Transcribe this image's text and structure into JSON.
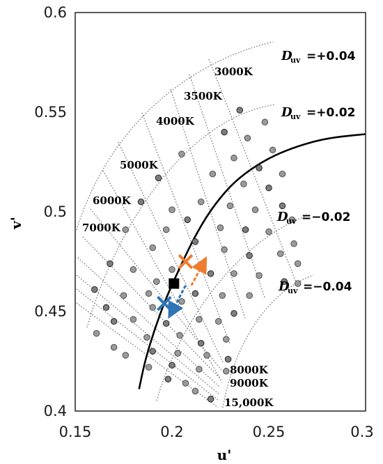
{
  "chart_data": {
    "type": "scatter",
    "xlabel": "u'",
    "ylabel": "v'",
    "xlim": [
      0.15,
      0.3
    ],
    "ylim": [
      0.4,
      0.6
    ],
    "x_ticks": [
      "0.15",
      "0.2",
      "0.25",
      "0.3"
    ],
    "y_ticks": [
      "0.4",
      "0.45",
      "0.5",
      "0.55",
      "0.6"
    ],
    "cct_labels": [
      "3000K",
      "3500K",
      "4000K",
      "5000K",
      "6000K",
      "7000K",
      "8000K",
      "9000K",
      "15,000K"
    ],
    "duv_labels": [
      {
        "symbol": "D",
        "subscript": "uv",
        "value": "=+0.04"
      },
      {
        "symbol": "D",
        "subscript": "uv",
        "value": "=+0.02"
      },
      {
        "symbol": "D",
        "subscript": "uv",
        "value": "=−0.02"
      },
      {
        "symbol": "D",
        "subscript": "uv",
        "value": "=−0.04"
      }
    ],
    "planckian_locus": [
      [
        0.183,
        0.411
      ],
      [
        0.186,
        0.425
      ],
      [
        0.191,
        0.441
      ],
      [
        0.197,
        0.457
      ],
      [
        0.205,
        0.474
      ],
      [
        0.212,
        0.488
      ],
      [
        0.22,
        0.501
      ],
      [
        0.23,
        0.513
      ],
      [
        0.24,
        0.521
      ],
      [
        0.252,
        0.528
      ],
      [
        0.265,
        0.533
      ],
      [
        0.28,
        0.537
      ],
      [
        0.3,
        0.539
      ]
    ],
    "sample_points": [
      [
        0.235,
        0.551
      ],
      [
        0.248,
        0.545
      ],
      [
        0.252,
        0.531
      ],
      [
        0.227,
        0.54
      ],
      [
        0.239,
        0.537
      ],
      [
        0.232,
        0.527
      ],
      [
        0.245,
        0.522
      ],
      [
        0.237,
        0.514
      ],
      [
        0.257,
        0.519
      ],
      [
        0.25,
        0.512
      ],
      [
        0.221,
        0.519
      ],
      [
        0.205,
        0.529
      ],
      [
        0.193,
        0.517
      ],
      [
        0.215,
        0.505
      ],
      [
        0.2,
        0.501
      ],
      [
        0.184,
        0.505
      ],
      [
        0.23,
        0.503
      ],
      [
        0.243,
        0.501
      ],
      [
        0.257,
        0.503
      ],
      [
        0.262,
        0.496
      ],
      [
        0.225,
        0.492
      ],
      [
        0.208,
        0.496
      ],
      [
        0.197,
        0.491
      ],
      [
        0.176,
        0.491
      ],
      [
        0.238,
        0.491
      ],
      [
        0.25,
        0.49
      ],
      [
        0.263,
        0.484
      ],
      [
        0.212,
        0.485
      ],
      [
        0.19,
        0.482
      ],
      [
        0.227,
        0.481
      ],
      [
        0.24,
        0.478
      ],
      [
        0.256,
        0.479
      ],
      [
        0.265,
        0.474
      ],
      [
        0.168,
        0.474
      ],
      [
        0.18,
        0.471
      ],
      [
        0.2,
        0.471
      ],
      [
        0.22,
        0.469
      ],
      [
        0.232,
        0.469
      ],
      [
        0.245,
        0.468
      ],
      [
        0.258,
        0.465
      ],
      [
        0.265,
        0.464
      ],
      [
        0.192,
        0.465
      ],
      [
        0.16,
        0.461
      ],
      [
        0.175,
        0.458
      ],
      [
        0.188,
        0.459
      ],
      [
        0.212,
        0.459
      ],
      [
        0.226,
        0.458
      ],
      [
        0.24,
        0.458
      ],
      [
        0.166,
        0.452
      ],
      [
        0.19,
        0.452
      ],
      [
        0.205,
        0.455
      ],
      [
        0.232,
        0.449
      ],
      [
        0.18,
        0.446
      ],
      [
        0.214,
        0.446
      ],
      [
        0.197,
        0.444
      ],
      [
        0.224,
        0.445
      ],
      [
        0.161,
        0.439
      ],
      [
        0.17,
        0.445
      ],
      [
        0.187,
        0.437
      ],
      [
        0.204,
        0.438
      ],
      [
        0.215,
        0.434
      ],
      [
        0.228,
        0.436
      ],
      [
        0.17,
        0.432
      ],
      [
        0.19,
        0.43
      ],
      [
        0.203,
        0.429
      ],
      [
        0.218,
        0.428
      ],
      [
        0.229,
        0.426
      ],
      [
        0.176,
        0.428
      ],
      [
        0.188,
        0.422
      ],
      [
        0.2,
        0.423
      ],
      [
        0.214,
        0.421
      ],
      [
        0.228,
        0.42
      ],
      [
        0.198,
        0.416
      ],
      [
        0.207,
        0.414
      ],
      [
        0.212,
        0.41
      ],
      [
        0.22,
        0.406
      ]
    ],
    "markers": [
      {
        "shape": "square",
        "u": 0.201,
        "v": 0.464,
        "color": "#000000"
      },
      {
        "shape": "x",
        "u": 0.207,
        "v": 0.475,
        "color": "#ed7d31"
      },
      {
        "shape": "x",
        "u": 0.196,
        "v": 0.454,
        "color": "#2e75b6"
      }
    ],
    "arrows": [
      {
        "from": [
          0.21,
          0.463
        ],
        "to": [
          0.216,
          0.474
        ],
        "color": "#ed7d31"
      },
      {
        "from": [
          0.207,
          0.463
        ],
        "to": [
          0.2,
          0.45
        ],
        "color": "#2e75b6"
      }
    ],
    "grid": false
  }
}
